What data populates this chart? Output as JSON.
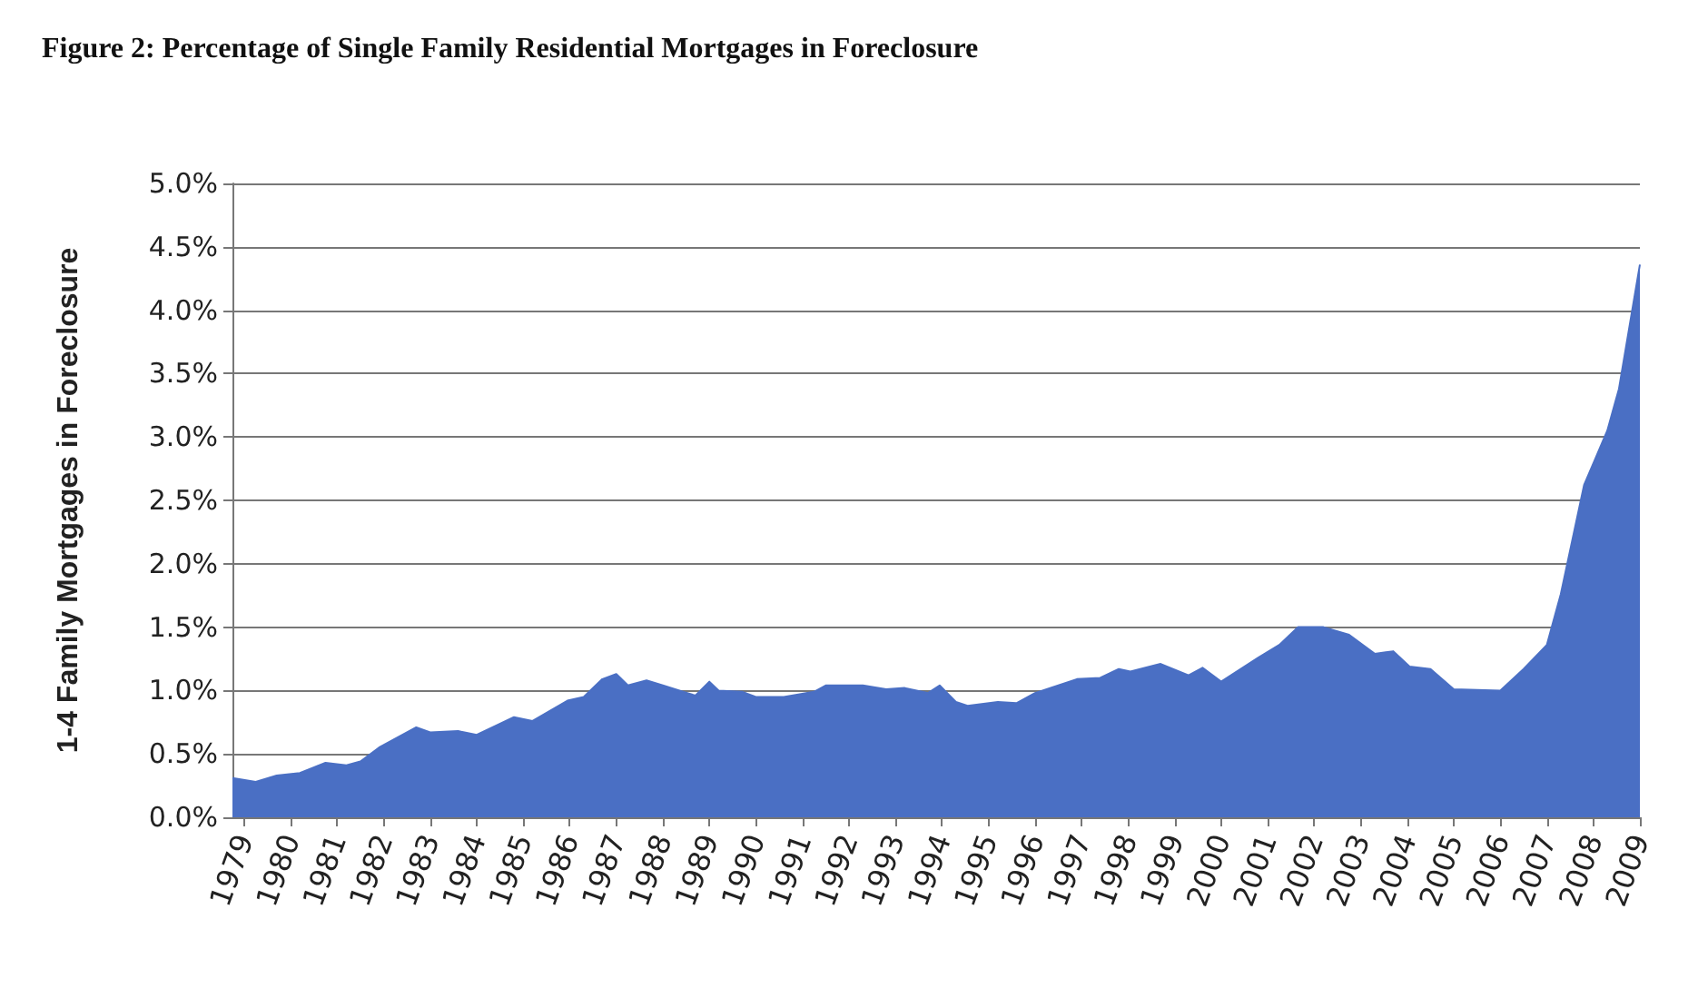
{
  "chart_data": {
    "type": "area",
    "title": "Figure 2: Percentage of Single Family Residential Mortgages in Foreclosure",
    "ylabel": "1-4 Family Mortgages in Foreclosure",
    "x": [
      1978.75,
      1979.25,
      1979.7,
      1980.2,
      1980.75,
      1981.2,
      1981.5,
      1981.9,
      1982.7,
      1983.0,
      1983.6,
      1984.0,
      1984.8,
      1985.2,
      1985.95,
      1986.3,
      1986.7,
      1987.0,
      1987.25,
      1987.65,
      1988.0,
      1988.7,
      1989.0,
      1989.2,
      1989.7,
      1990.0,
      1990.6,
      1991.25,
      1991.5,
      1992.3,
      1992.8,
      1993.2,
      1993.7,
      1993.95,
      1994.3,
      1994.55,
      1995.2,
      1995.6,
      1996.0,
      1996.9,
      1997.4,
      1997.8,
      1998.05,
      1998.7,
      1999.3,
      1999.6,
      2000.0,
      2000.8,
      2001.25,
      2001.65,
      2002.2,
      2002.75,
      2003.3,
      2003.7,
      2004.05,
      2004.5,
      2005.0,
      2006.0,
      2006.5,
      2007.0,
      2007.3,
      2007.8,
      2008.3,
      2008.55,
      2009.0
    ],
    "series": [
      {
        "color": "#4a6fc4",
        "values": [
          0.31,
          0.28,
          0.33,
          0.35,
          0.43,
          0.41,
          0.44,
          0.55,
          0.71,
          0.67,
          0.68,
          0.65,
          0.79,
          0.76,
          0.92,
          0.95,
          1.09,
          1.13,
          1.04,
          1.08,
          1.04,
          0.96,
          1.07,
          1.0,
          0.99,
          0.95,
          0.95,
          0.99,
          1.04,
          1.04,
          1.01,
          1.02,
          0.98,
          1.04,
          0.91,
          0.88,
          0.91,
          0.9,
          0.98,
          1.09,
          1.1,
          1.17,
          1.15,
          1.21,
          1.12,
          1.18,
          1.07,
          1.26,
          1.36,
          1.5,
          1.5,
          1.44,
          1.29,
          1.31,
          1.19,
          1.17,
          1.01,
          1.0,
          1.17,
          1.36,
          1.76,
          2.62,
          3.05,
          3.38,
          4.36
        ]
      }
    ],
    "xlim": [
      1978.75,
      2009
    ],
    "xticks": [
      1979,
      1980,
      1981,
      1982,
      1983,
      1984,
      1985,
      1986,
      1987,
      1988,
      1989,
      1990,
      1991,
      1992,
      1993,
      1994,
      1995,
      1996,
      1997,
      1998,
      1999,
      2000,
      2001,
      2002,
      2003,
      2004,
      2005,
      2006,
      2007,
      2008,
      2009
    ],
    "ylim": [
      0,
      5
    ],
    "yticks": [
      {
        "value": 0,
        "label": "0.0%"
      },
      {
        "value": 0.5,
        "label": "0.5%"
      },
      {
        "value": 1,
        "label": "1.0%"
      },
      {
        "value": 1.5,
        "label": "1.5%"
      },
      {
        "value": 2,
        "label": "2.0%"
      },
      {
        "value": 2.5,
        "label": "2.5%"
      },
      {
        "value": 3,
        "label": "3.0%"
      },
      {
        "value": 3.5,
        "label": "3.5%"
      },
      {
        "value": 4,
        "label": "4.0%"
      },
      {
        "value": 4.5,
        "label": "4.5%"
      },
      {
        "value": 5,
        "label": "5.0%"
      }
    ],
    "grid": "y",
    "marker": "none"
  }
}
